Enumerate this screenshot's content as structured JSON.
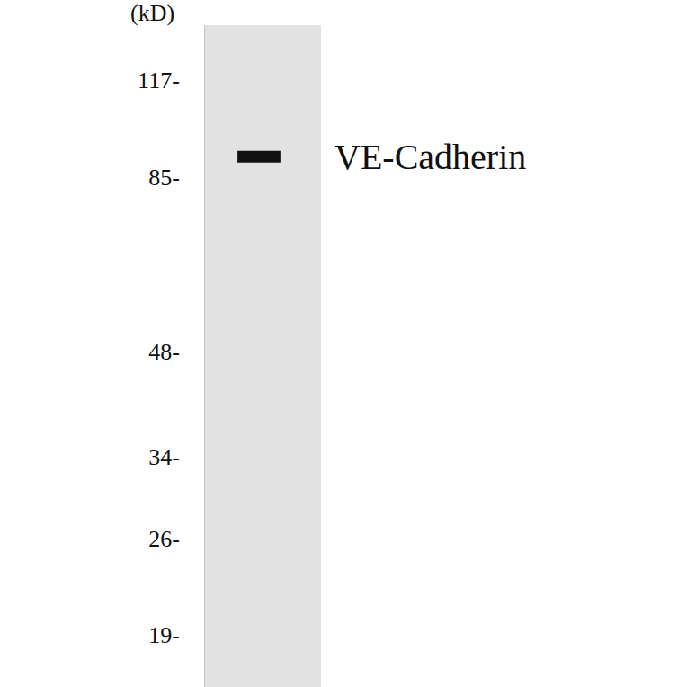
{
  "chart_data": {
    "type": "western_blot",
    "y_label": "(kD)",
    "log": "y",
    "ylim": [
      16,
      140
    ],
    "yticks": [
      {
        "value": 117,
        "label": "117-"
      },
      {
        "value": 85,
        "label": "85-"
      },
      {
        "value": 48,
        "label": "48-"
      },
      {
        "value": 34,
        "label": "34-"
      },
      {
        "value": 26,
        "label": "26-"
      },
      {
        "value": 19,
        "label": "19-"
      }
    ],
    "bands": [
      {
        "value": 91,
        "label": "VE-Cadherin"
      }
    ],
    "tick_labels": "y"
  }
}
